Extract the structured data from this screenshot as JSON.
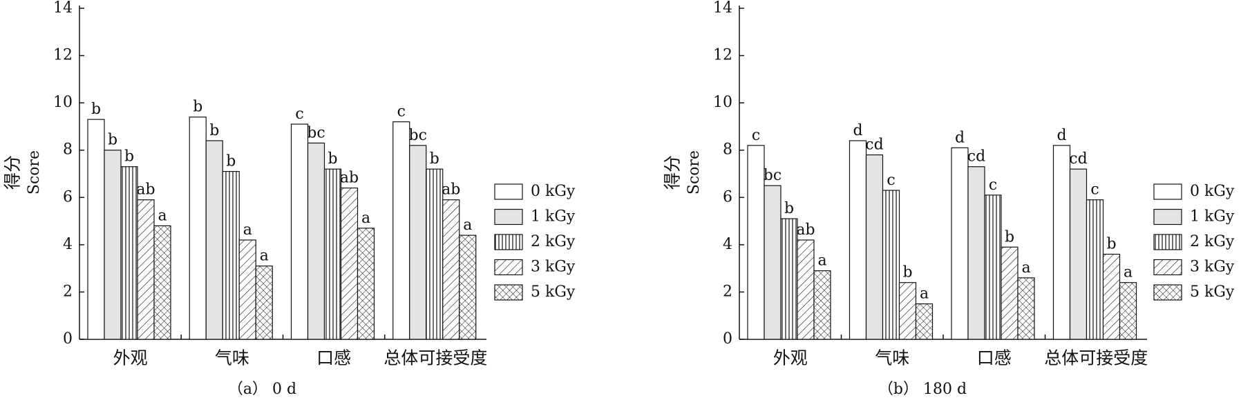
{
  "chart_data": [
    {
      "type": "bar",
      "caption": "（a） 0 d",
      "ylabel": "得分",
      "ylabel_en": "Score",
      "categories": [
        "外观",
        "气味",
        "口感",
        "总体可接受度"
      ],
      "ylim": [
        0,
        14
      ],
      "yticks": [
        0,
        2,
        4,
        6,
        8,
        10,
        12,
        14
      ],
      "legend": "right",
      "series": [
        {
          "name": "0 kGy",
          "color": "#ffffff",
          "pattern": "none",
          "values": [
            9.3,
            9.4,
            9.1,
            9.2
          ],
          "labels": [
            "b",
            "b",
            "c",
            "c"
          ]
        },
        {
          "name": "1 kGy",
          "color": "#e4e4e4",
          "pattern": "none",
          "values": [
            8.0,
            8.4,
            8.3,
            8.2
          ],
          "labels": [
            "b",
            "b",
            "bc",
            "bc"
          ]
        },
        {
          "name": "2 kGy",
          "color": "#ffffff",
          "pattern": "vertical",
          "values": [
            7.3,
            7.1,
            7.2,
            7.2
          ],
          "labels": [
            "b",
            "b",
            "b",
            "b"
          ]
        },
        {
          "name": "3 kGy",
          "color": "#ffffff",
          "pattern": "diagonal",
          "values": [
            5.9,
            4.2,
            6.4,
            5.9
          ],
          "labels": [
            "ab",
            "a",
            "ab",
            "ab"
          ]
        },
        {
          "name": "5 kGy",
          "color": "#ffffff",
          "pattern": "cross",
          "values": [
            4.8,
            3.1,
            4.7,
            4.4
          ],
          "labels": [
            "a",
            "a",
            "a",
            "a"
          ]
        }
      ]
    },
    {
      "type": "bar",
      "caption": "（b） 180 d",
      "ylabel": "得分",
      "ylabel_en": "Score",
      "categories": [
        "外观",
        "气味",
        "口感",
        "总体可接受度"
      ],
      "ylim": [
        0,
        14
      ],
      "yticks": [
        0,
        2,
        4,
        6,
        8,
        10,
        12,
        14
      ],
      "legend": "right",
      "series": [
        {
          "name": "0 kGy",
          "color": "#ffffff",
          "pattern": "none",
          "values": [
            8.2,
            8.4,
            8.1,
            8.2
          ],
          "labels": [
            "c",
            "d",
            "d",
            "d"
          ]
        },
        {
          "name": "1 kGy",
          "color": "#e4e4e4",
          "pattern": "none",
          "values": [
            6.5,
            7.8,
            7.3,
            7.2
          ],
          "labels": [
            "bc",
            "cd",
            "cd",
            "cd"
          ]
        },
        {
          "name": "2 kGy",
          "color": "#ffffff",
          "pattern": "vertical",
          "values": [
            5.1,
            6.3,
            6.1,
            5.9
          ],
          "labels": [
            "b",
            "c",
            "c",
            "c"
          ]
        },
        {
          "name": "3 kGy",
          "color": "#ffffff",
          "pattern": "diagonal",
          "values": [
            4.2,
            2.4,
            3.9,
            3.6
          ],
          "labels": [
            "ab",
            "b",
            "b",
            "b"
          ]
        },
        {
          "name": "5 kGy",
          "color": "#ffffff",
          "pattern": "cross",
          "values": [
            2.9,
            1.5,
            2.6,
            2.4
          ],
          "labels": [
            "a",
            "a",
            "a",
            "a"
          ]
        }
      ]
    }
  ]
}
